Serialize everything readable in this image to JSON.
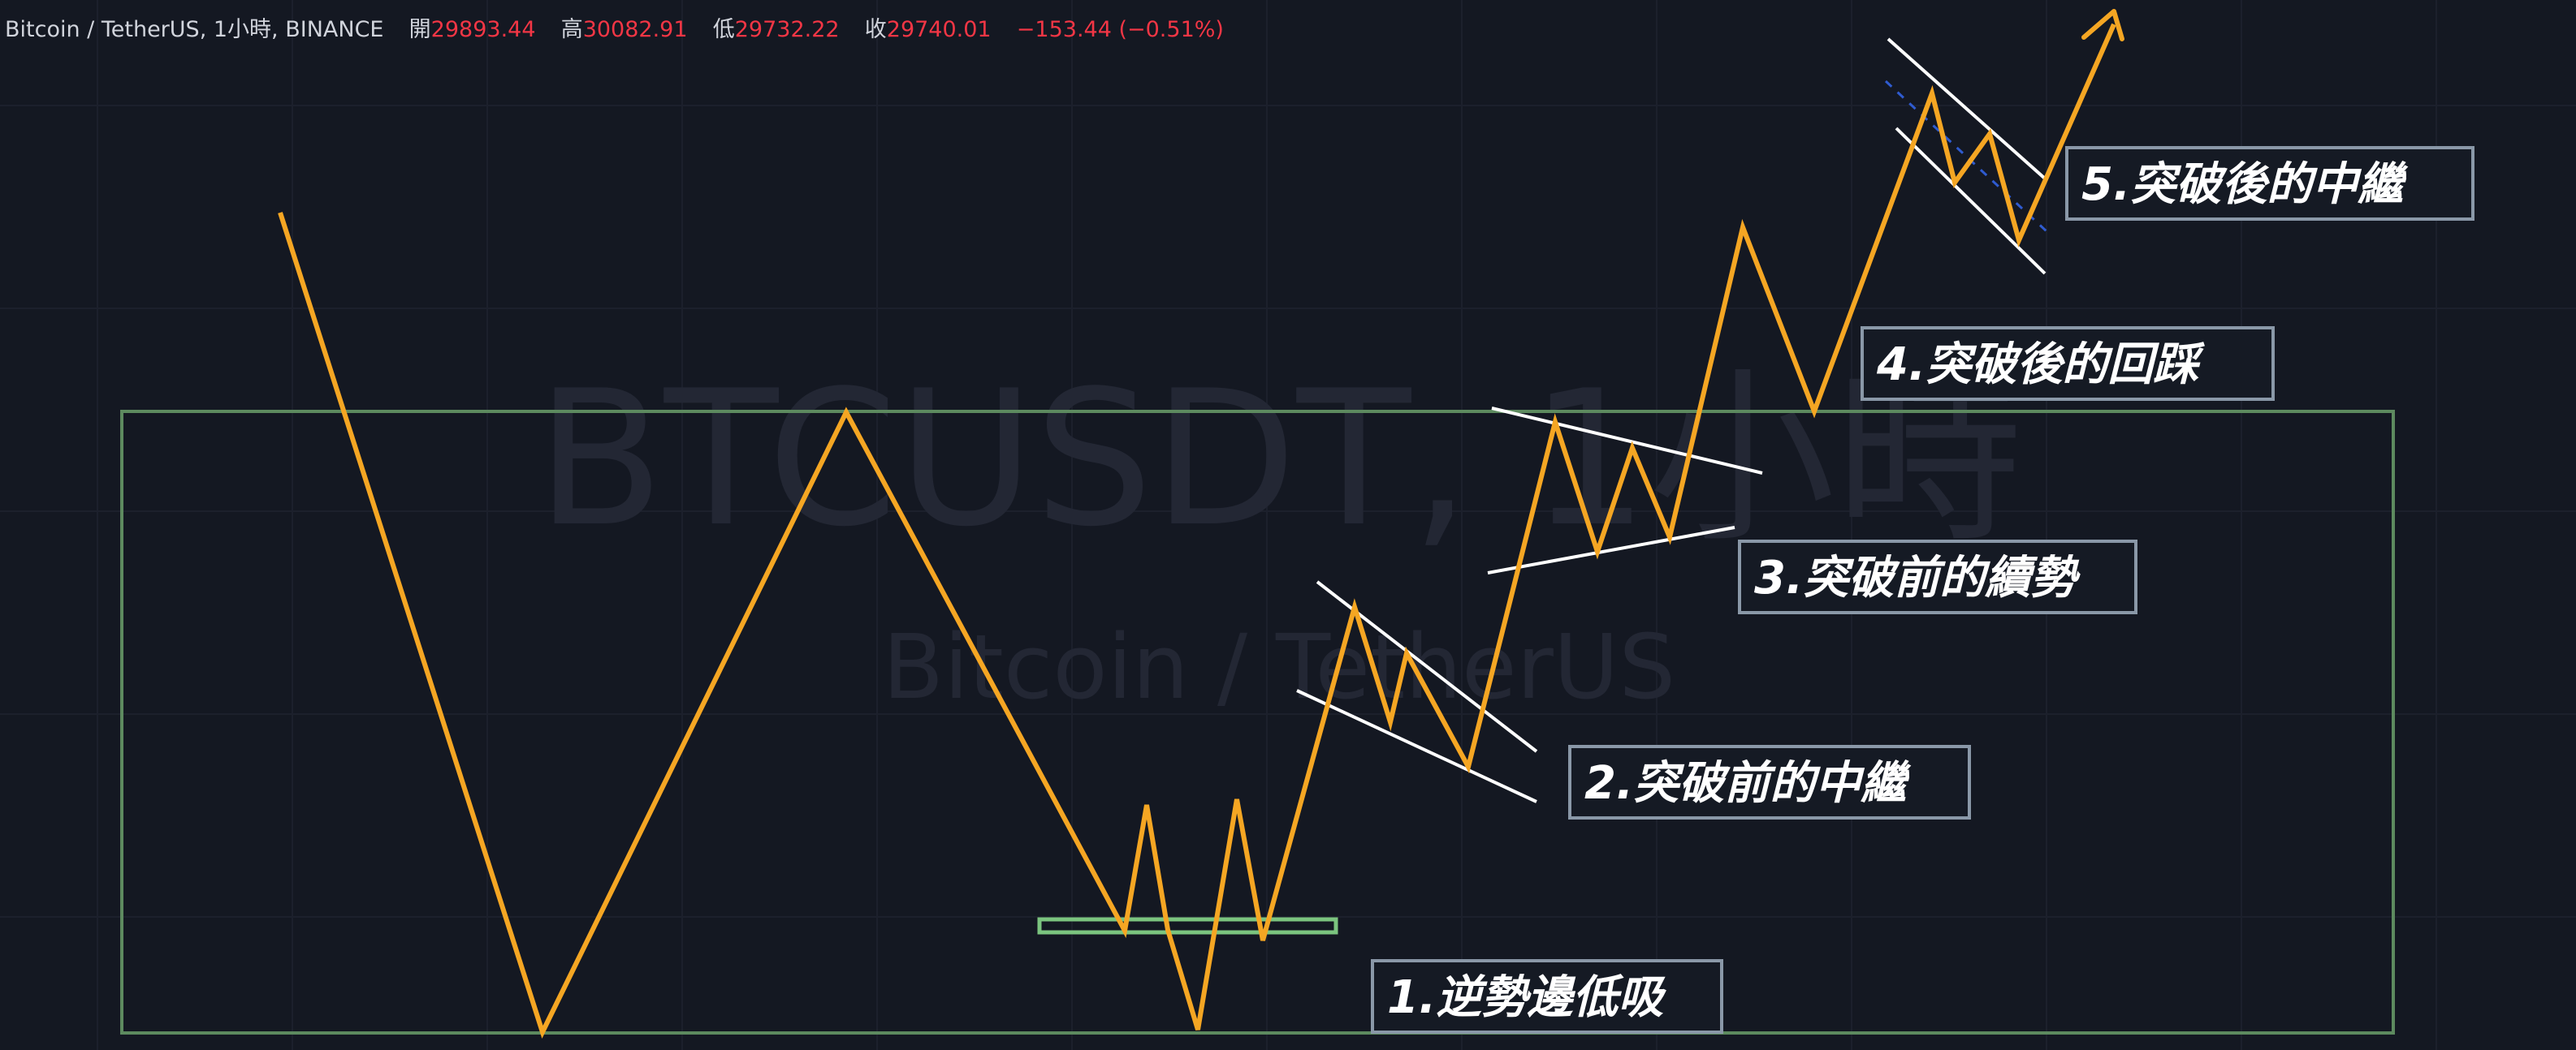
{
  "header": {
    "symbol": "Bitcoin / TetherUS",
    "interval": "1小時",
    "exchange": "BINANCE",
    "open_label": "開",
    "open": "29893.44",
    "high_label": "高",
    "high": "30082.91",
    "low_label": "低",
    "low": "29732.22",
    "close_label": "收",
    "close": "29740.01",
    "change": "−153.44 (−0.51%)"
  },
  "watermark": {
    "main": "BTCUSDT, 1小時",
    "sub": "Bitcoin / TetherUS"
  },
  "colors": {
    "background": "#141822",
    "grid": "#1e2230",
    "price_line": "#f5a623",
    "range_box": "#5d8a5f",
    "support_zone": "#7bc47f",
    "trendline": "#ffffff",
    "label_border": "#8a98a8",
    "header_value": "#f23645"
  },
  "chart_data": {
    "type": "line",
    "description_free": true,
    "series": [
      {
        "values": []
      }
    ],
    "annotations": [
      "1.逆勢邊低吸",
      "2.突破前的中繼",
      "3.突破前的續勢",
      "4.突破後的回踩",
      "5.突破後的中繼"
    ]
  }
}
